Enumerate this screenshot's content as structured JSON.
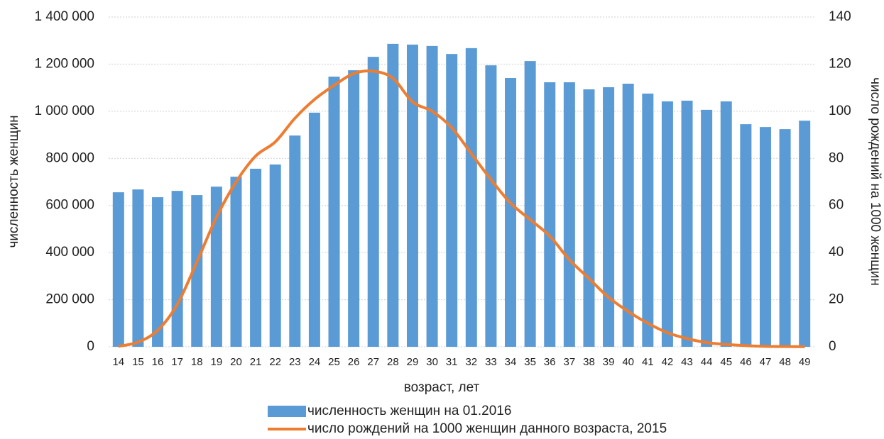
{
  "chart_data": {
    "type": "bar_line",
    "x_label": "возраст, лет",
    "y_label": "численность женщин",
    "y2_label": "число рождений на 1000 женщин",
    "categories": [
      "14",
      "15",
      "16",
      "17",
      "18",
      "19",
      "20",
      "21",
      "22",
      "23",
      "24",
      "25",
      "26",
      "27",
      "28",
      "29",
      "30",
      "31",
      "32",
      "33",
      "34",
      "35",
      "36",
      "37",
      "38",
      "39",
      "40",
      "41",
      "42",
      "43",
      "44",
      "45",
      "46",
      "47",
      "48",
      "49"
    ],
    "series": [
      {
        "name": "численность женщин на 01.2016",
        "type": "bar",
        "color": "#5b9bd5",
        "values": [
          656000,
          668000,
          635000,
          662000,
          644000,
          680000,
          722000,
          756000,
          774000,
          897000,
          994000,
          1147000,
          1174000,
          1231000,
          1286000,
          1283000,
          1277000,
          1243000,
          1268000,
          1195000,
          1141000,
          1213000,
          1123000,
          1123000,
          1093000,
          1102000,
          1117000,
          1075000,
          1042000,
          1045000,
          1006000,
          1042000,
          945000,
          933000,
          924000,
          960000
        ]
      },
      {
        "name": "число рождений на 1000 женщин данного возраста, 2015",
        "type": "line",
        "axis": "y2",
        "color": "#ed7d31",
        "values": [
          0.2,
          2,
          7,
          18,
          36,
          55,
          70,
          81,
          87,
          97,
          105,
          111,
          116,
          117,
          114,
          104,
          100,
          93,
          82,
          71,
          61,
          54,
          47,
          37,
          29,
          21,
          15,
          10,
          6,
          3.5,
          1.8,
          1,
          0.5,
          0.2,
          0.1,
          0.05
        ]
      }
    ],
    "ylim": [
      0,
      1400000
    ],
    "yticks": [
      0,
      {
        "value": 200000,
        "label": "200 000"
      },
      {
        "value": 400000,
        "label": "400 000"
      },
      {
        "value": 600000,
        "label": "600 000"
      },
      {
        "value": 800000,
        "label": "800 000"
      },
      {
        "value": 1000000,
        "label": "1 000 000"
      },
      {
        "value": 1200000,
        "label": "1 200 000"
      },
      {
        "value": 1400000,
        "label": "1 400 000"
      }
    ],
    "y2lim": [
      0,
      140
    ],
    "y2ticks": [
      0,
      20,
      40,
      60,
      80,
      100,
      120,
      140
    ],
    "grid": true
  }
}
